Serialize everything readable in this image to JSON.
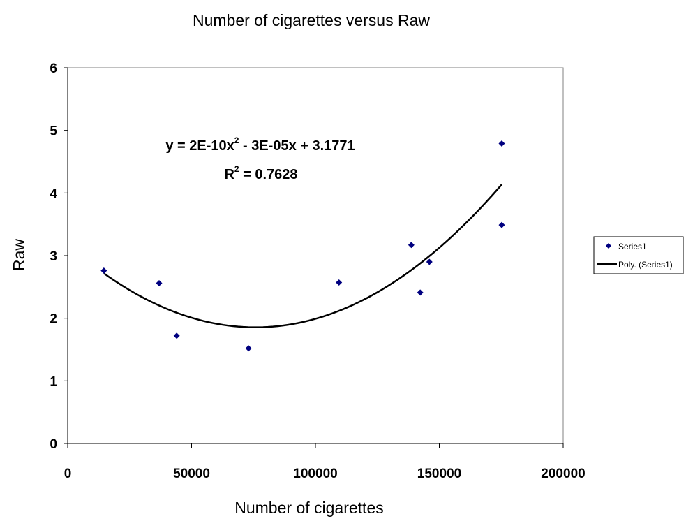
{
  "chart_data": {
    "type": "scatter",
    "title": "Number of cigarettes versus Raw",
    "xlabel": "Number of cigarettes",
    "ylabel": "Raw",
    "xlim": [
      0,
      200000
    ],
    "ylim": [
      0,
      6
    ],
    "x_ticks": [
      0,
      50000,
      100000,
      150000,
      200000
    ],
    "y_ticks": [
      0,
      1,
      2,
      3,
      4,
      5,
      6
    ],
    "x_tick_labels": [
      "0",
      "50000",
      "100000",
      "150000",
      "200000"
    ],
    "y_tick_labels": [
      "0",
      "1",
      "2",
      "3",
      "4",
      "5",
      "6"
    ],
    "grid": false,
    "legend_position": "right",
    "series": [
      {
        "name": "Series1",
        "marker": "diamond",
        "color": "#000080",
        "points": [
          {
            "x": 14600,
            "y": 2.76
          },
          {
            "x": 36900,
            "y": 2.56
          },
          {
            "x": 44000,
            "y": 1.72
          },
          {
            "x": 73000,
            "y": 1.52
          },
          {
            "x": 109500,
            "y": 2.57
          },
          {
            "x": 138700,
            "y": 3.17
          },
          {
            "x": 142300,
            "y": 2.41
          },
          {
            "x": 146000,
            "y": 2.9
          },
          {
            "x": 175200,
            "y": 4.79
          },
          {
            "x": 175200,
            "y": 3.49
          }
        ]
      }
    ],
    "trendline": {
      "name": "Poly. (Series1)",
      "type": "polynomial",
      "order": 2,
      "color": "#000000",
      "x_range": [
        14600,
        175200
      ]
    },
    "annotations": {
      "equation_prefix": "y = 2E-10x",
      "equation_exponent": "2",
      "equation_suffix": " - 3E-05x + 3.1771",
      "r2_prefix": "R",
      "r2_exponent": "2",
      "r2_suffix": " = 0.7628"
    }
  }
}
